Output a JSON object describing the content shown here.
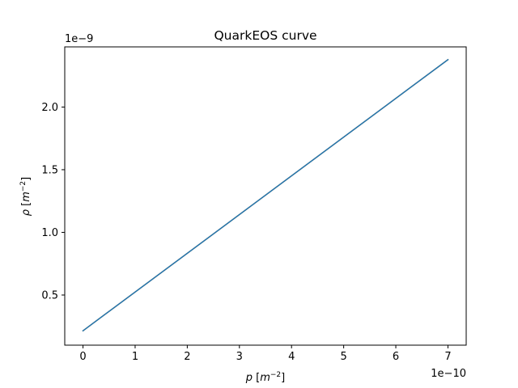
{
  "chart_data": {
    "type": "line",
    "title": "QuarkEOS curve",
    "xlabel": "p [m^-2]",
    "ylabel": "ρ [m^-2]",
    "x_offset_text": "1e−10",
    "y_offset_text": "1e−9",
    "xlim": [
      -0.35,
      7.35
    ],
    "ylim": [
      0.1,
      2.48
    ],
    "x_ticks": [
      0,
      1,
      2,
      3,
      4,
      5,
      6,
      7
    ],
    "x_tick_labels": [
      "0",
      "1",
      "2",
      "3",
      "4",
      "5",
      "6",
      "7"
    ],
    "y_ticks": [
      0.5,
      1.0,
      1.5,
      2.0
    ],
    "y_tick_labels": [
      "0.5",
      "1.0",
      "1.5",
      "2.0"
    ],
    "grid": false,
    "series": [
      {
        "color": "#ff7f0e",
        "x": [
          0,
          7
        ],
        "y": [
          0.215,
          2.378
        ]
      },
      {
        "color": "#1f77b4",
        "x": [
          0,
          7
        ],
        "y": [
          0.215,
          2.378
        ]
      }
    ]
  }
}
